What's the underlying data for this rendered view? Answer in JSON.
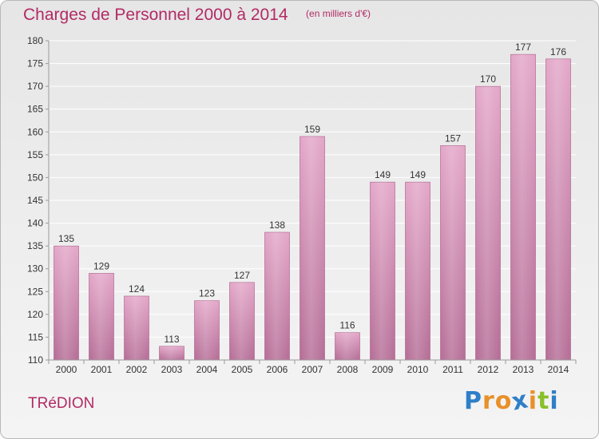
{
  "header": {
    "title": "Charges de Personnel 2000 à 2014",
    "subtitle": "(en milliers d'€)"
  },
  "footer": {
    "commune": "TRéDION",
    "logo": {
      "letters": [
        "P",
        "r",
        "o",
        "x",
        "i",
        "t",
        "i"
      ],
      "colors": [
        "#2f7fc8",
        "#e8902a",
        "#e8902a",
        "#2f7fc8",
        "#e8902a",
        "#8abf2a",
        "#2f7fc8"
      ]
    }
  },
  "chart_data": {
    "type": "bar",
    "categories": [
      "2000",
      "2001",
      "2002",
      "2003",
      "2004",
      "2005",
      "2006",
      "2007",
      "2008",
      "2009",
      "2010",
      "2011",
      "2012",
      "2013",
      "2014"
    ],
    "values": [
      135,
      129,
      124,
      113,
      123,
      127,
      138,
      159,
      116,
      149,
      149,
      157,
      170,
      177,
      176
    ],
    "ylim": [
      110,
      180
    ],
    "yticks": [
      110,
      115,
      120,
      125,
      130,
      135,
      140,
      145,
      150,
      155,
      160,
      165,
      170,
      175,
      180
    ],
    "grid": true,
    "bar_color": "#d98fb7",
    "title": "Charges de Personnel 2000 à 2014",
    "xlabel": "",
    "ylabel": ""
  }
}
